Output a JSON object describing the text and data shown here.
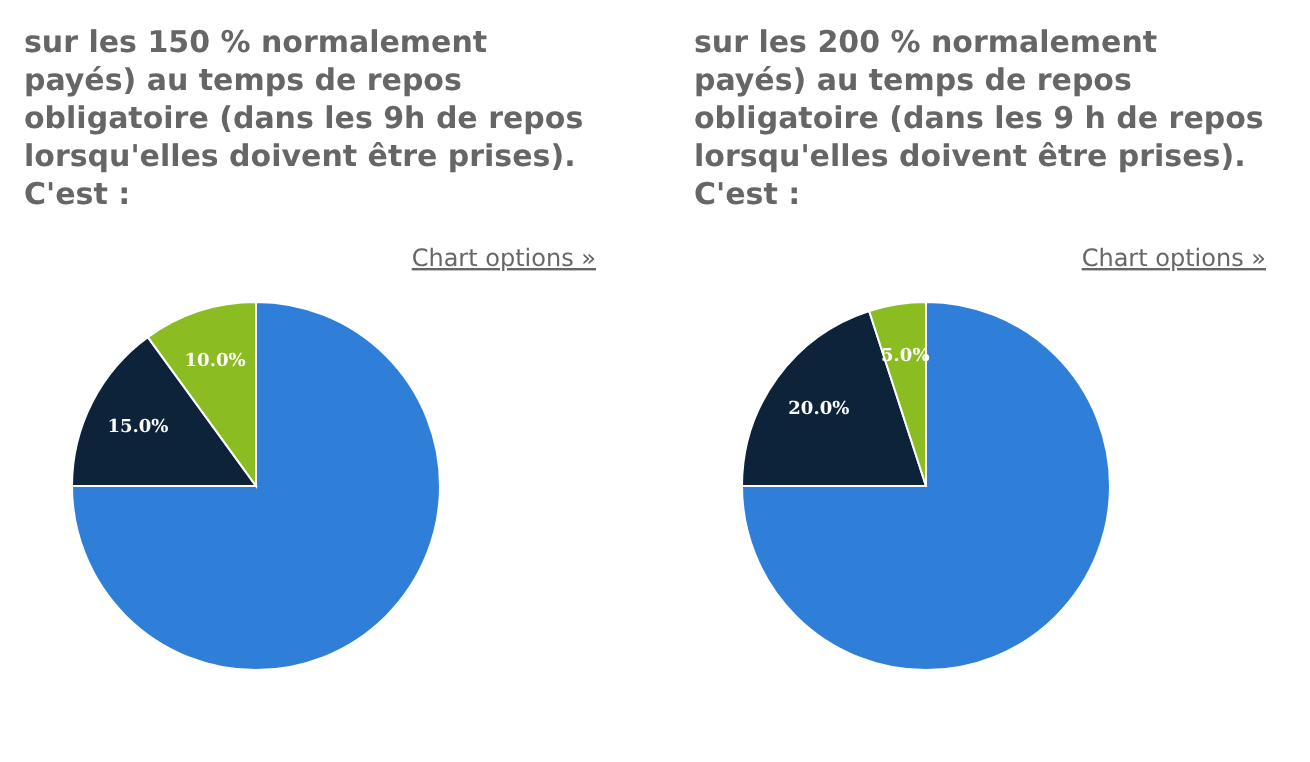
{
  "chart_data": [
    {
      "type": "pie",
      "title": "sur les 150 % normalement payés) au temps de repos obligatoire (dans les 9h de repos lorsqu'elles doivent être prises). C'est :",
      "annotations": [
        "Chart options »"
      ],
      "categories": [
        null,
        null,
        null
      ],
      "values": [
        75,
        15,
        10
      ],
      "colors": [
        "#2f7ed8",
        "#0d233a",
        "#8bbc21"
      ],
      "value_labels": [
        null,
        "15.0%",
        "10.0%"
      ]
    },
    {
      "type": "pie",
      "title": "sur les 200 % normalement payés) au temps de repos obligatoire (dans les 9 h de repos lorsqu'elles doivent être prises). C'est :",
      "annotations": [
        "Chart options »"
      ],
      "categories": [
        null,
        null,
        null
      ],
      "values": [
        75,
        20,
        5
      ],
      "colors": [
        "#2f7ed8",
        "#0d233a",
        "#8bbc21"
      ],
      "value_labels": [
        null,
        "20.0%",
        "5.0%"
      ]
    }
  ]
}
